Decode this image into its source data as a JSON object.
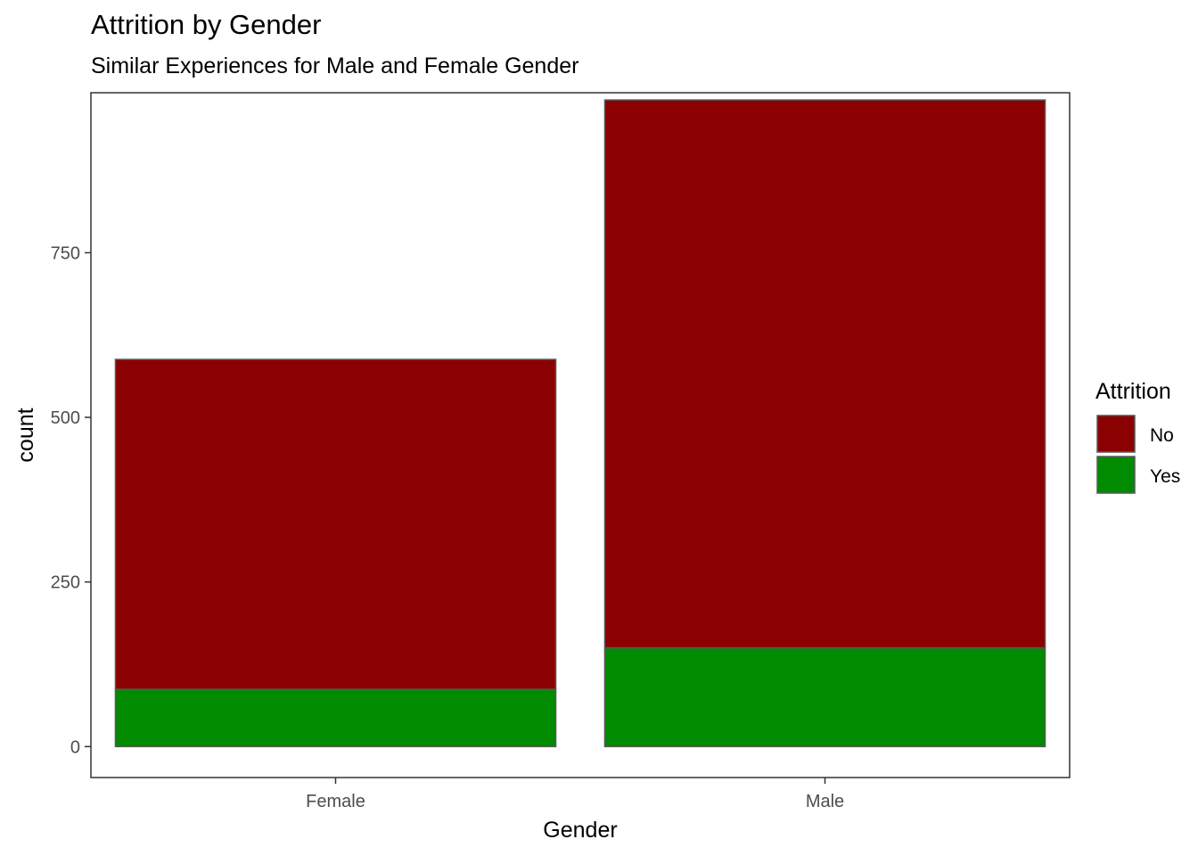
{
  "chart_data": {
    "type": "bar",
    "stacked": true,
    "title": "Attrition by Gender",
    "subtitle": "Similar Experiences for Male and Female Gender",
    "xlabel": "Gender",
    "ylabel": "count",
    "categories": [
      "Female",
      "Male"
    ],
    "series": [
      {
        "name": "No",
        "color": "#8B0000",
        "values": [
          501,
          832
        ]
      },
      {
        "name": "Yes",
        "color": "#008B00",
        "values": [
          87,
          150
        ]
      }
    ],
    "yticks": [
      0,
      250,
      500,
      750
    ],
    "ylim": [
      -47,
      993
    ],
    "legend": {
      "title": "Attrition",
      "position": "right"
    },
    "grid": false
  }
}
